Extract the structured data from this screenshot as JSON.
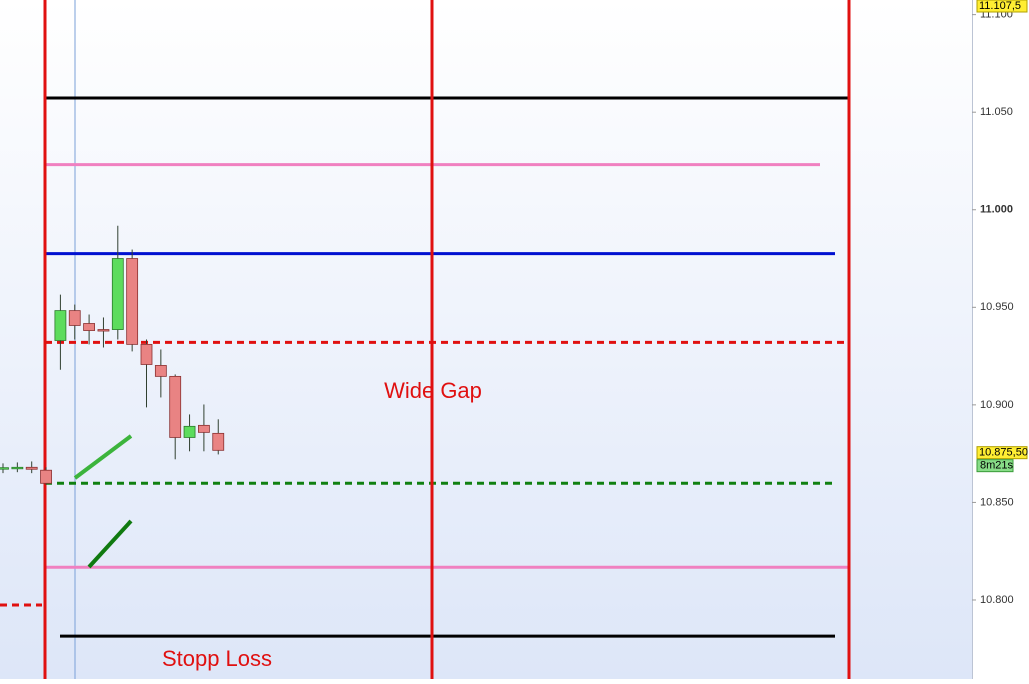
{
  "chart_data": {
    "type": "candlestick",
    "categories": [
      null,
      null,
      null,
      null,
      null,
      null,
      null,
      null,
      null,
      null,
      null,
      null,
      null,
      null,
      null,
      null
    ],
    "open": [
      10867.5,
      10867.8,
      10868.0,
      10866.5,
      10933.0,
      10948.3,
      10941.7,
      10938.6,
      10938.6,
      10975.0,
      10931.0,
      10920.2,
      10914.6,
      10883.3,
      10889.5,
      10885.4
    ],
    "high": [
      10870.0,
      10870.5,
      10871.0,
      10868.0,
      10956.5,
      10951.4,
      10946.3,
      10944.8,
      10991.8,
      10979.6,
      10933.5,
      10928.4,
      10915.6,
      10895.1,
      10900.2,
      10892.6
    ],
    "low": [
      10865.0,
      10865.5,
      10865.0,
      10859.0,
      10918.0,
      10933.5,
      10931.0,
      10929.4,
      10933.5,
      10927.4,
      10898.7,
      10903.8,
      10872.1,
      10876.2,
      10876.2,
      10874.6
    ],
    "close": [
      10867.8,
      10868.0,
      10867.0,
      10859.8,
      10948.3,
      10940.7,
      10938.1,
      10938.1,
      10975.0,
      10931.0,
      10920.7,
      10914.6,
      10883.3,
      10889.0,
      10885.9,
      10876.7
    ],
    "up_color": "#5ddc5d",
    "down_color": "#e98383",
    "ylim": [
      10759.5,
      11107.5
    ],
    "yticks": [
      {
        "value": 11100,
        "label": "11.100"
      },
      {
        "value": 11050,
        "label": "11.050"
      },
      {
        "value": 11000,
        "label": "11.000"
      },
      {
        "value": 10950,
        "label": "10.950"
      },
      {
        "value": 10900,
        "label": "10.900"
      },
      {
        "value": 10850,
        "label": "10.850"
      },
      {
        "value": 10800,
        "label": "10.800"
      }
    ],
    "levels": [
      {
        "value": 11057.3,
        "color": "#000000",
        "style": "solid"
      },
      {
        "value": 11023.1,
        "color": "#f080c0",
        "style": "solid"
      },
      {
        "value": 10977.5,
        "color": "#0010d0",
        "style": "solid"
      },
      {
        "value": 10932.0,
        "color": "#e01010",
        "style": "dashed"
      },
      {
        "value": 10859.8,
        "color": "#108010",
        "style": "dashed"
      },
      {
        "value": 10816.8,
        "color": "#f080c0",
        "style": "solid"
      },
      {
        "value": 10781.5,
        "color": "#000000",
        "style": "solid"
      },
      {
        "value": 10797.4,
        "color": "#e01010",
        "style": "dashed"
      }
    ],
    "price_markers": [
      {
        "value": 11107.5,
        "label": "11.107,5"
      },
      {
        "value": 10875.5,
        "label": "10.875,50"
      }
    ],
    "countdown": "8m21s",
    "annotations": [
      "Wide Gap",
      "Stopp Loss"
    ]
  }
}
